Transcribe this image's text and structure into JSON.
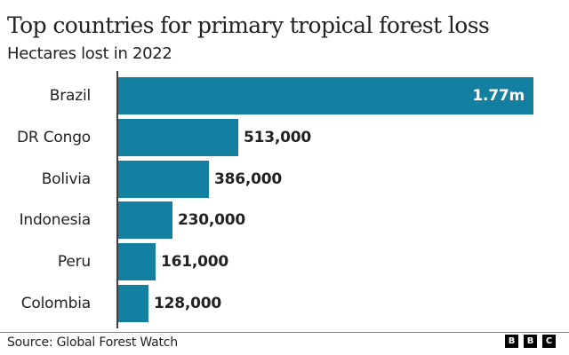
{
  "header": {
    "title": "Top countries for primary tropical forest loss",
    "subtitle": "Hectares lost in 2022"
  },
  "footer": {
    "source": "Source: Global Forest Watch",
    "logo_letters": [
      "B",
      "B",
      "C"
    ]
  },
  "colors": {
    "bar": "#1380A1",
    "text": "#222222"
  },
  "chart_data": {
    "type": "bar",
    "orientation": "horizontal",
    "title": "Top countries for primary tropical forest loss",
    "subtitle": "Hectares lost in 2022",
    "xlabel": "",
    "ylabel": "",
    "categories": [
      "Brazil",
      "DR Congo",
      "Bolivia",
      "Indonesia",
      "Peru",
      "Colombia"
    ],
    "values": [
      1770000,
      513000,
      386000,
      230000,
      161000,
      128000
    ],
    "value_labels": [
      "1.77m",
      "513,000",
      "386,000",
      "230,000",
      "161,000",
      "128,000"
    ],
    "grid": false,
    "legend": null,
    "source": "Source: Global Forest Watch"
  }
}
